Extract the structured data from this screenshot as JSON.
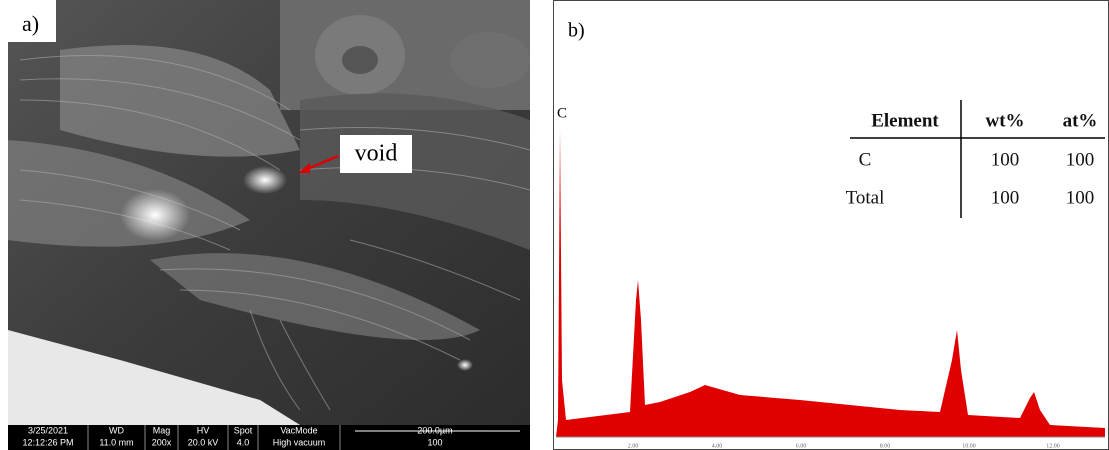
{
  "panel_a": {
    "label": "a)",
    "annotation": "void",
    "info_bar": {
      "headers": [
        "3/25/2021",
        "WD",
        "Mag",
        "HV",
        "Spot",
        "VacMode",
        "200.0µm"
      ],
      "values": [
        "12:12:26 PM",
        "11.0 mm",
        "200x",
        "20.0 kV",
        "4.0",
        "High vacuum",
        "100"
      ]
    }
  },
  "panel_b": {
    "label": "b)",
    "peak_label": "C",
    "table": {
      "header": [
        "Element",
        "wt%",
        "at%"
      ],
      "rows": [
        [
          "C",
          100,
          100
        ],
        [
          "Total",
          100,
          100
        ]
      ]
    },
    "x_tick_labels": [
      "2.00",
      "4.00",
      "6.00",
      "8.00",
      "10.00",
      "12.00"
    ]
  }
}
